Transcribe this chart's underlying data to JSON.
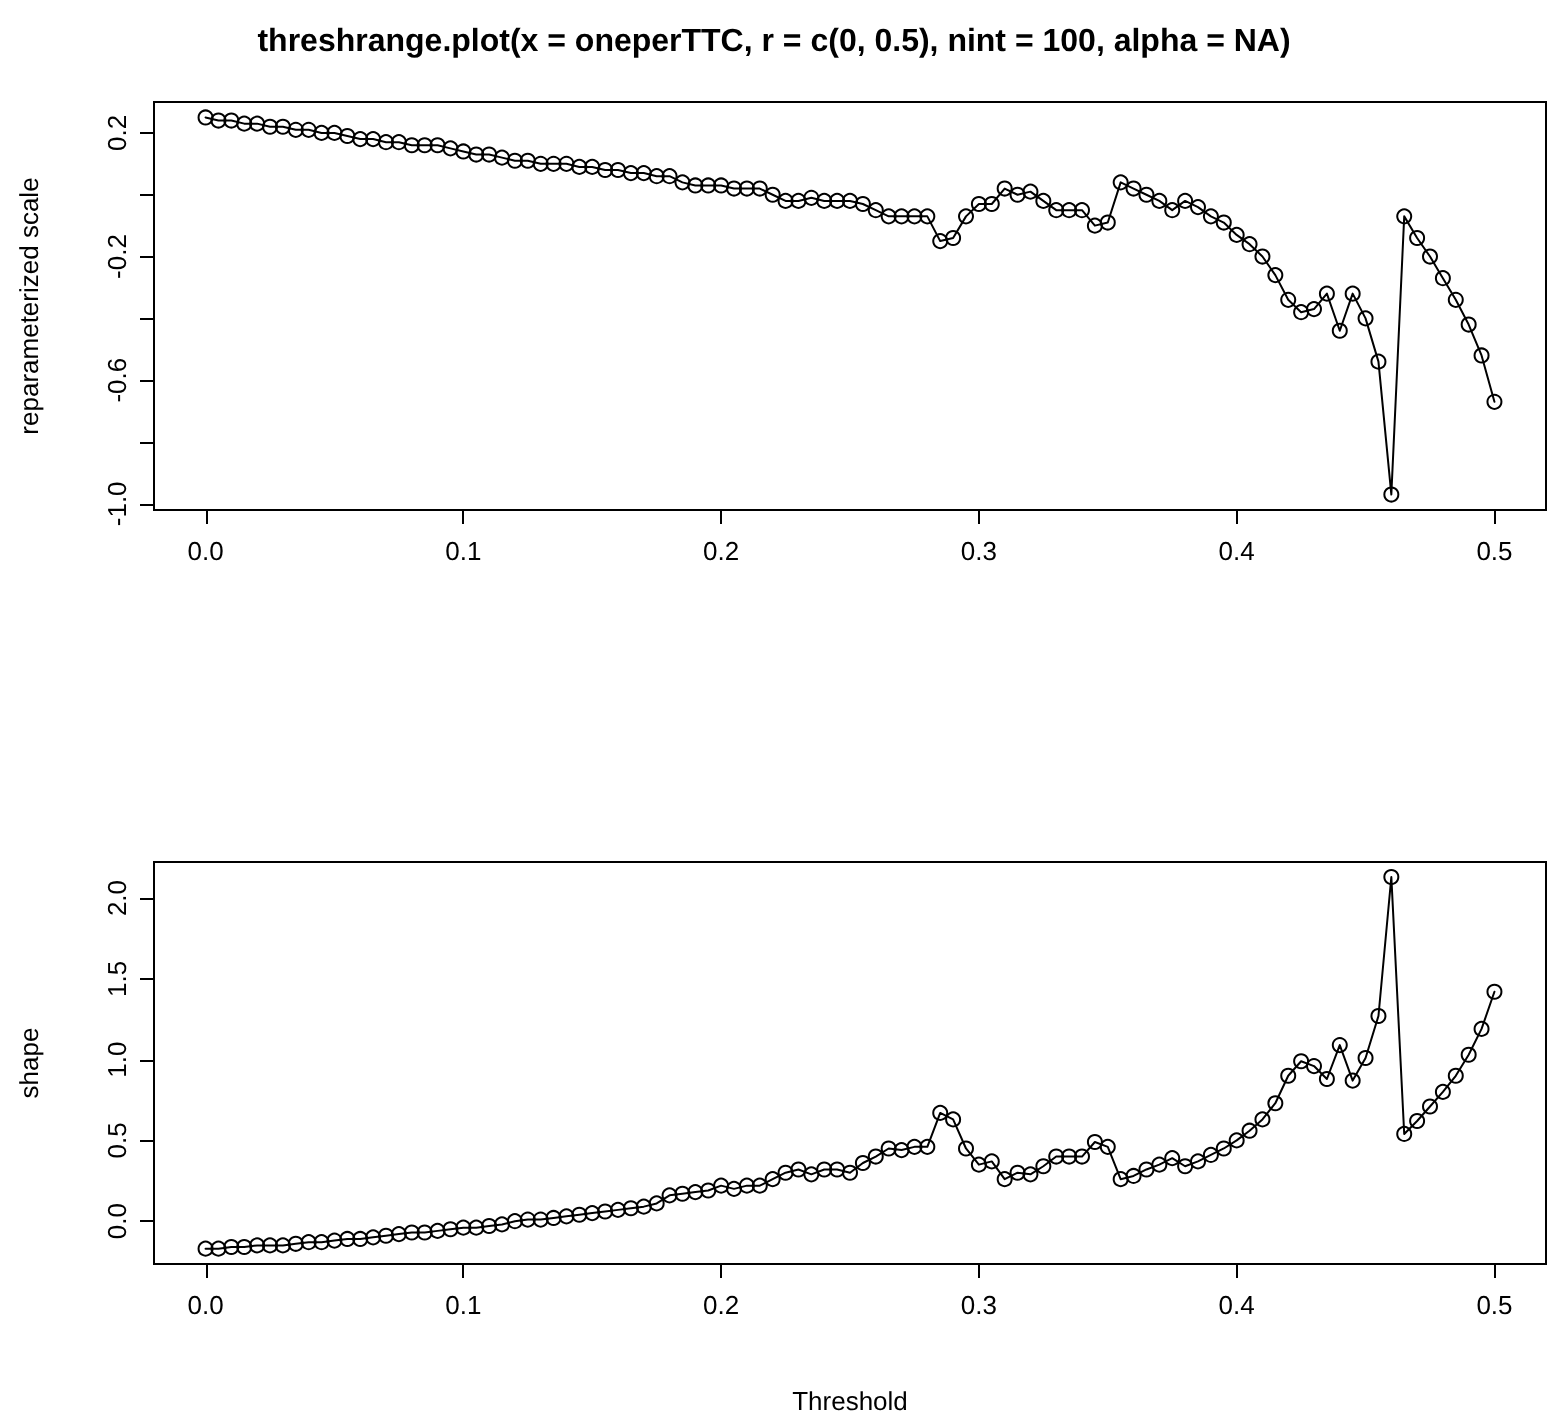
{
  "chart_data": [
    {
      "type": "line",
      "title": "threshrange.plot(x = oneperTTC, r = c(0, 0.5), nint = 100, alpha = NA)",
      "ylabel": "reparameterized scale",
      "marker": "circle",
      "line_style": "solid",
      "grid": false,
      "x": [
        0,
        0.005,
        0.01,
        0.015,
        0.02,
        0.025,
        0.03,
        0.035,
        0.04,
        0.045,
        0.05,
        0.055,
        0.06,
        0.065,
        0.07,
        0.075,
        0.08,
        0.085,
        0.09,
        0.095,
        0.1,
        0.105,
        0.11,
        0.115,
        0.12,
        0.125,
        0.13,
        0.135,
        0.14,
        0.145,
        0.15,
        0.155,
        0.16,
        0.165,
        0.17,
        0.175,
        0.18,
        0.185,
        0.19,
        0.195,
        0.2,
        0.205,
        0.21,
        0.215,
        0.22,
        0.225,
        0.23,
        0.235,
        0.24,
        0.245,
        0.25,
        0.255,
        0.26,
        0.265,
        0.27,
        0.275,
        0.28,
        0.285,
        0.29,
        0.295,
        0.3,
        0.305,
        0.31,
        0.315,
        0.32,
        0.325,
        0.33,
        0.335,
        0.34,
        0.345,
        0.35,
        0.355,
        0.36,
        0.365,
        0.37,
        0.375,
        0.38,
        0.385,
        0.39,
        0.395,
        0.4,
        0.405,
        0.41,
        0.415,
        0.42,
        0.425,
        0.43,
        0.435,
        0.44,
        0.445,
        0.45,
        0.455,
        0.46,
        0.465,
        0.47,
        0.475,
        0.48,
        0.485,
        0.49,
        0.495,
        0.5
      ],
      "series": [
        {
          "color": "#000000",
          "values": [
            0.25,
            0.24,
            0.24,
            0.23,
            0.23,
            0.22,
            0.22,
            0.21,
            0.21,
            0.2,
            0.2,
            0.19,
            0.18,
            0.18,
            0.17,
            0.17,
            0.16,
            0.16,
            0.16,
            0.15,
            0.14,
            0.13,
            0.13,
            0.12,
            0.11,
            0.11,
            0.1,
            0.1,
            0.1,
            0.09,
            0.09,
            0.08,
            0.08,
            0.07,
            0.07,
            0.06,
            0.06,
            0.04,
            0.03,
            0.03,
            0.03,
            0.02,
            0.02,
            0.02,
            0.0,
            -0.02,
            -0.02,
            -0.01,
            -0.02,
            -0.02,
            -0.02,
            -0.03,
            -0.05,
            -0.07,
            -0.07,
            -0.07,
            -0.07,
            -0.15,
            -0.14,
            -0.07,
            -0.03,
            -0.03,
            0.02,
            0.0,
            0.01,
            -0.02,
            -0.05,
            -0.05,
            -0.05,
            -0.1,
            -0.09,
            0.04,
            0.02,
            0.0,
            -0.02,
            -0.05,
            -0.02,
            -0.04,
            -0.07,
            -0.09,
            -0.13,
            -0.16,
            -0.2,
            -0.26,
            -0.34,
            -0.38,
            -0.37,
            -0.32,
            -0.44,
            -0.32,
            -0.4,
            -0.54,
            -0.97,
            -0.07,
            -0.14,
            -0.2,
            -0.27,
            -0.34,
            -0.42,
            -0.52,
            -0.67
          ]
        }
      ],
      "xlim": [
        -0.02,
        0.52
      ],
      "xticks": [
        {
          "value": 0,
          "label": "0.0"
        },
        0.1,
        0.2,
        0.3,
        0.4,
        0.5
      ],
      "ylim": [
        -1.02,
        0.3
      ],
      "yticks": [
        {
          "value": -1,
          "label": "-1.0"
        },
        {
          "value": -0.8,
          "label": null
        },
        -0.6,
        {
          "value": -0.4,
          "label": null
        },
        -0.2,
        {
          "value": 0,
          "label": null
        },
        0.2
      ]
    },
    {
      "type": "line",
      "xlabel": "Threshold",
      "ylabel": "shape",
      "marker": "circle",
      "line_style": "solid",
      "grid": false,
      "x": [
        0,
        0.005,
        0.01,
        0.015,
        0.02,
        0.025,
        0.03,
        0.035,
        0.04,
        0.045,
        0.05,
        0.055,
        0.06,
        0.065,
        0.07,
        0.075,
        0.08,
        0.085,
        0.09,
        0.095,
        0.1,
        0.105,
        0.11,
        0.115,
        0.12,
        0.125,
        0.13,
        0.135,
        0.14,
        0.145,
        0.15,
        0.155,
        0.16,
        0.165,
        0.17,
        0.175,
        0.18,
        0.185,
        0.19,
        0.195,
        0.2,
        0.205,
        0.21,
        0.215,
        0.22,
        0.225,
        0.23,
        0.235,
        0.24,
        0.245,
        0.25,
        0.255,
        0.26,
        0.265,
        0.27,
        0.275,
        0.28,
        0.285,
        0.29,
        0.295,
        0.3,
        0.305,
        0.31,
        0.315,
        0.32,
        0.325,
        0.33,
        0.335,
        0.34,
        0.345,
        0.35,
        0.355,
        0.36,
        0.365,
        0.37,
        0.375,
        0.38,
        0.385,
        0.39,
        0.395,
        0.4,
        0.405,
        0.41,
        0.415,
        0.42,
        0.425,
        0.43,
        0.435,
        0.44,
        0.445,
        0.45,
        0.455,
        0.46,
        0.465,
        0.47,
        0.475,
        0.48,
        0.485,
        0.49,
        0.495,
        0.5
      ],
      "series": [
        {
          "color": "#000000",
          "values": [
            -0.17,
            -0.17,
            -0.16,
            -0.16,
            -0.15,
            -0.15,
            -0.15,
            -0.14,
            -0.13,
            -0.13,
            -0.12,
            -0.11,
            -0.11,
            -0.1,
            -0.09,
            -0.08,
            -0.07,
            -0.07,
            -0.06,
            -0.05,
            -0.04,
            -0.04,
            -0.03,
            -0.02,
            0.0,
            0.01,
            0.01,
            0.02,
            0.03,
            0.04,
            0.05,
            0.06,
            0.07,
            0.08,
            0.09,
            0.11,
            0.16,
            0.17,
            0.18,
            0.19,
            0.22,
            0.2,
            0.22,
            0.22,
            0.26,
            0.3,
            0.32,
            0.29,
            0.32,
            0.32,
            0.3,
            0.36,
            0.4,
            0.45,
            0.44,
            0.46,
            0.46,
            0.67,
            0.63,
            0.45,
            0.35,
            0.37,
            0.26,
            0.3,
            0.29,
            0.34,
            0.4,
            0.4,
            0.4,
            0.49,
            0.46,
            0.26,
            0.28,
            0.32,
            0.35,
            0.39,
            0.34,
            0.37,
            0.41,
            0.45,
            0.5,
            0.56,
            0.63,
            0.73,
            0.9,
            0.99,
            0.96,
            0.88,
            1.09,
            0.87,
            1.01,
            1.27,
            2.13,
            0.54,
            0.62,
            0.71,
            0.8,
            0.9,
            1.03,
            1.19,
            1.42
          ]
        }
      ],
      "xlim": [
        -0.02,
        0.52
      ],
      "xticks": [
        {
          "value": 0,
          "label": "0.0"
        },
        0.1,
        0.2,
        0.3,
        0.4,
        0.5
      ],
      "ylim": [
        -0.265,
        2.223
      ],
      "yticks": [
        {
          "value": 0,
          "label": "0.0"
        },
        0.5,
        {
          "value": 1,
          "label": "1.0"
        },
        1.5,
        {
          "value": 2,
          "label": "2.0"
        }
      ]
    }
  ]
}
